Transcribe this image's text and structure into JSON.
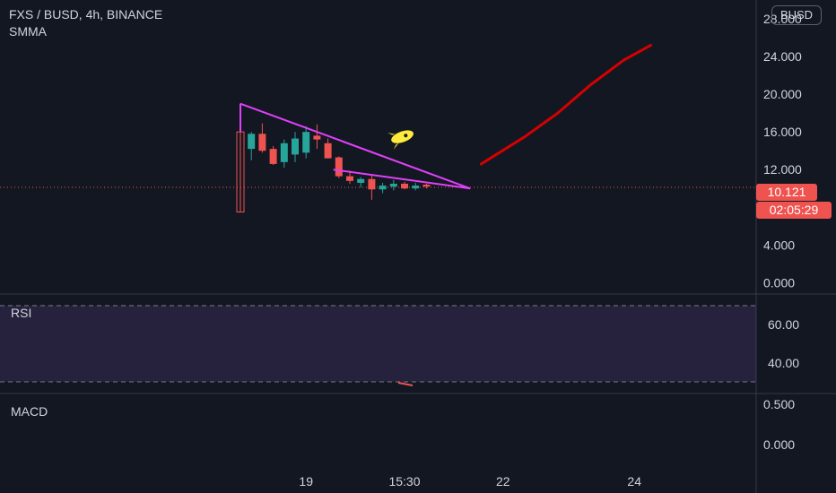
{
  "header": {
    "title": "FXS / BUSD, 4h, BINANCE",
    "indicator": "SMMA"
  },
  "currency_badge": "BUSD",
  "price_badge": {
    "value": "10.121",
    "color": "#ef5350"
  },
  "countdown_badge": {
    "value": "02:05:29",
    "color": "#ef5350"
  },
  "rsi_panel": {
    "label": "RSI",
    "ticks": [
      "60.00",
      "40.00"
    ],
    "band": [
      30,
      70
    ]
  },
  "macd_panel": {
    "label": "MACD",
    "ticks": [
      "0.500",
      "0.000"
    ]
  },
  "colors": {
    "background": "#131722",
    "up": "#26a69a",
    "down": "#ef5350",
    "triangle": "#e040fb",
    "arrow": "#d50000",
    "rocket": "#ffeb3b",
    "rsi_fill": "#7e57c2"
  },
  "chart_data": {
    "type": "candlestick",
    "title": "FXS / BUSD, 4h, BINANCE",
    "ylim": [
      -1.2,
      30
    ],
    "y_ticks": [
      0,
      4,
      8,
      12,
      16,
      20,
      24,
      28
    ],
    "y_tick_labels": [
      "0.000",
      "4.000",
      "8.000",
      "12.000",
      "16.000",
      "20.000",
      "24.000",
      "28.000"
    ],
    "x_ticks": [
      {
        "label": "19",
        "index": 6
      },
      {
        "label": "15:30",
        "index": 15
      },
      {
        "label": "22",
        "index": 24
      },
      {
        "label": "24",
        "index": 36
      }
    ],
    "last_price": 10.121,
    "candles": [
      {
        "o": 16.0,
        "h": 19.0,
        "l": 7.5,
        "c": 7.5
      },
      {
        "o": 14.2,
        "h": 16.0,
        "l": 13.0,
        "c": 15.8
      },
      {
        "o": 15.8,
        "h": 16.9,
        "l": 13.8,
        "c": 14.0
      },
      {
        "o": 14.2,
        "h": 14.5,
        "l": 12.5,
        "c": 12.6
      },
      {
        "o": 12.8,
        "h": 15.2,
        "l": 12.2,
        "c": 14.8
      },
      {
        "o": 13.6,
        "h": 16.0,
        "l": 12.8,
        "c": 15.3
      },
      {
        "o": 13.8,
        "h": 16.6,
        "l": 13.2,
        "c": 16.0
      },
      {
        "o": 15.6,
        "h": 16.8,
        "l": 14.2,
        "c": 15.2
      },
      {
        "o": 14.8,
        "h": 15.3,
        "l": 13.2,
        "c": 13.2
      },
      {
        "o": 13.3,
        "h": 13.4,
        "l": 11.1,
        "c": 11.3
      },
      {
        "o": 11.3,
        "h": 11.9,
        "l": 10.5,
        "c": 10.8
      },
      {
        "o": 10.6,
        "h": 11.2,
        "l": 10.1,
        "c": 11.0
      },
      {
        "o": 11.0,
        "h": 11.5,
        "l": 8.8,
        "c": 9.9
      },
      {
        "o": 9.9,
        "h": 10.6,
        "l": 9.5,
        "c": 10.3
      },
      {
        "o": 10.2,
        "h": 10.9,
        "l": 9.8,
        "c": 10.5
      },
      {
        "o": 10.5,
        "h": 10.7,
        "l": 9.9,
        "c": 10.0
      },
      {
        "o": 10.0,
        "h": 10.6,
        "l": 9.8,
        "c": 10.3
      },
      {
        "o": 10.4,
        "h": 10.5,
        "l": 10.0,
        "c": 10.2
      }
    ],
    "drawings": {
      "big_triangle": [
        {
          "index": 0,
          "price": 19.0
        },
        {
          "index": 21,
          "price": 10.0
        },
        {
          "index": 0,
          "price": 19.0
        }
      ],
      "small_triangle": [
        {
          "index": 8.5,
          "price": 12.0
        },
        {
          "index": 21,
          "price": 10.0
        }
      ],
      "projection_arrow": [
        {
          "index": 22,
          "price": 12.6
        },
        {
          "index": 26,
          "price": 15.5
        },
        {
          "index": 29,
          "price": 18.0
        },
        {
          "index": 32,
          "price": 21.0
        },
        {
          "index": 35,
          "price": 23.6
        },
        {
          "index": 37.5,
          "price": 25.2
        }
      ]
    }
  }
}
